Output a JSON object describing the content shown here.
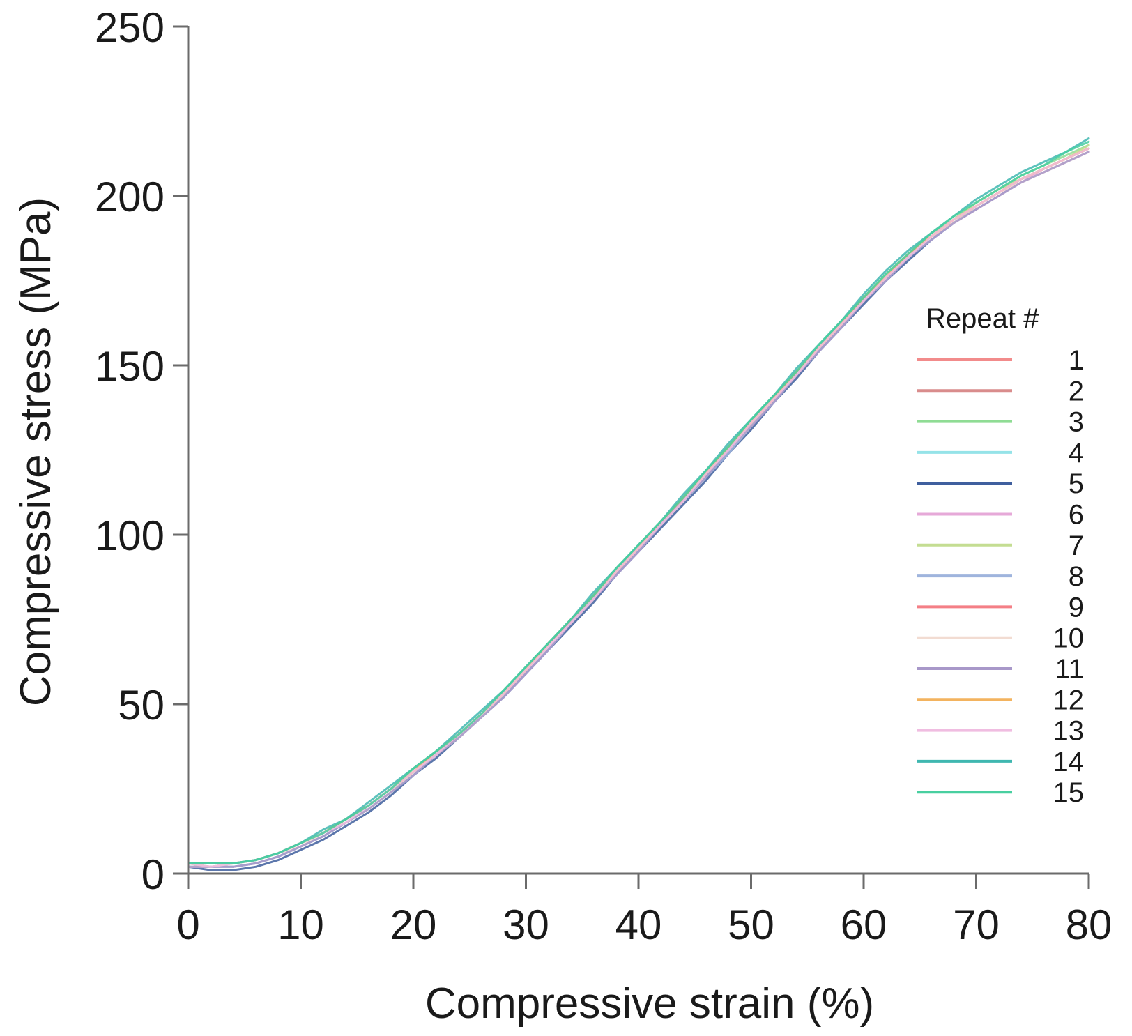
{
  "chart_data": {
    "type": "line",
    "xlabel": "Compressive strain (%)",
    "ylabel": "Compressive stress (MPa)",
    "xlim": [
      0,
      80
    ],
    "ylim": [
      0,
      250
    ],
    "x_ticks": [
      0,
      10,
      20,
      30,
      40,
      50,
      60,
      70,
      80
    ],
    "y_ticks": [
      0,
      50,
      100,
      150,
      200,
      250
    ],
    "grid": false,
    "legend": {
      "title": "Repeat #",
      "placement": "right"
    },
    "x": [
      0,
      2,
      4,
      6,
      8,
      10,
      12,
      14,
      16,
      18,
      20,
      22,
      24,
      26,
      28,
      30,
      32,
      34,
      36,
      38,
      40,
      42,
      44,
      46,
      48,
      50,
      52,
      54,
      56,
      58,
      60,
      62,
      64,
      66,
      68,
      70,
      72,
      74,
      76,
      78,
      80
    ],
    "series": [
      {
        "name": "1",
        "color": "#f28b8b",
        "values": [
          3,
          2,
          2,
          3,
          5,
          8,
          11,
          15,
          19,
          24,
          30,
          35,
          40,
          46,
          52,
          59,
          67,
          74,
          81,
          89,
          96,
          103,
          110,
          118,
          125,
          133,
          140,
          148,
          155,
          162,
          169,
          176,
          182,
          188,
          192,
          196,
          200,
          204,
          207,
          210,
          213
        ]
      },
      {
        "name": "2",
        "color": "#d98c8c",
        "values": [
          2,
          2,
          3,
          4,
          6,
          9,
          12,
          16,
          20,
          25,
          30,
          35,
          41,
          47,
          53,
          60,
          68,
          75,
          82,
          89,
          96,
          104,
          111,
          118,
          126,
          133,
          140,
          148,
          155,
          162,
          170,
          176,
          183,
          188,
          193,
          197,
          201,
          205,
          208,
          211,
          214
        ]
      },
      {
        "name": "3",
        "color": "#8fdc94",
        "values": [
          3,
          3,
          3,
          4,
          6,
          9,
          12,
          16,
          20,
          25,
          31,
          36,
          41,
          47,
          54,
          61,
          68,
          75,
          82,
          90,
          97,
          104,
          111,
          119,
          126,
          134,
          141,
          148,
          155,
          163,
          170,
          177,
          183,
          189,
          193,
          198,
          202,
          206,
          209,
          212,
          215
        ]
      },
      {
        "name": "4",
        "color": "#95e3e8",
        "values": [
          2,
          2,
          2,
          3,
          5,
          8,
          11,
          15,
          19,
          24,
          30,
          35,
          40,
          46,
          52,
          59,
          67,
          74,
          81,
          88,
          96,
          103,
          110,
          117,
          125,
          132,
          140,
          147,
          154,
          162,
          169,
          176,
          182,
          188,
          193,
          197,
          201,
          205,
          208,
          211,
          214
        ]
      },
      {
        "name": "5",
        "color": "#3f5f9e",
        "values": [
          2,
          1,
          1,
          2,
          4,
          7,
          10,
          14,
          18,
          23,
          29,
          34,
          40,
          46,
          52,
          59,
          66,
          73,
          80,
          88,
          95,
          102,
          109,
          116,
          124,
          131,
          139,
          146,
          154,
          161,
          168,
          175,
          181,
          187,
          192,
          197,
          201,
          205,
          208,
          211,
          214
        ]
      },
      {
        "name": "6",
        "color": "#e6a9d8",
        "values": [
          3,
          3,
          3,
          4,
          6,
          9,
          12,
          16,
          20,
          25,
          30,
          36,
          41,
          47,
          53,
          60,
          67,
          74,
          82,
          89,
          96,
          103,
          111,
          118,
          126,
          133,
          140,
          148,
          155,
          162,
          169,
          176,
          182,
          188,
          193,
          197,
          201,
          204,
          208,
          211,
          214
        ]
      },
      {
        "name": "7",
        "color": "#c4dd92",
        "values": [
          3,
          2,
          3,
          4,
          6,
          9,
          12,
          16,
          20,
          25,
          31,
          36,
          41,
          47,
          53,
          60,
          68,
          75,
          82,
          89,
          96,
          104,
          111,
          118,
          126,
          133,
          141,
          148,
          155,
          162,
          170,
          177,
          183,
          188,
          193,
          198,
          202,
          205,
          208,
          211,
          215
        ]
      },
      {
        "name": "8",
        "color": "#9fb4dd",
        "values": [
          2,
          2,
          2,
          3,
          5,
          8,
          11,
          15,
          19,
          24,
          29,
          35,
          40,
          46,
          52,
          59,
          66,
          74,
          81,
          88,
          95,
          103,
          110,
          117,
          124,
          132,
          139,
          147,
          154,
          161,
          169,
          175,
          182,
          187,
          192,
          196,
          200,
          204,
          207,
          210,
          213
        ]
      },
      {
        "name": "9",
        "color": "#f47f86",
        "values": [
          3,
          3,
          3,
          4,
          6,
          9,
          12,
          16,
          20,
          25,
          30,
          35,
          41,
          47,
          53,
          60,
          67,
          75,
          82,
          89,
          96,
          103,
          111,
          118,
          125,
          133,
          140,
          148,
          155,
          162,
          170,
          176,
          183,
          188,
          193,
          197,
          201,
          205,
          208,
          211,
          214
        ]
      },
      {
        "name": "10",
        "color": "#f2dcd2",
        "values": [
          2,
          2,
          3,
          4,
          6,
          8,
          12,
          15,
          19,
          24,
          30,
          35,
          40,
          46,
          53,
          60,
          67,
          74,
          81,
          89,
          96,
          103,
          110,
          118,
          125,
          132,
          140,
          147,
          155,
          162,
          169,
          176,
          182,
          188,
          192,
          197,
          201,
          204,
          207,
          210,
          213
        ]
      },
      {
        "name": "11",
        "color": "#a898c9",
        "values": [
          2,
          2,
          2,
          3,
          5,
          8,
          11,
          15,
          19,
          24,
          29,
          35,
          40,
          46,
          52,
          59,
          66,
          74,
          81,
          88,
          95,
          103,
          110,
          117,
          125,
          132,
          139,
          147,
          154,
          161,
          169,
          175,
          182,
          187,
          192,
          196,
          200,
          204,
          207,
          210,
          213
        ]
      },
      {
        "name": "12",
        "color": "#f3b35f",
        "values": [
          3,
          3,
          3,
          4,
          6,
          9,
          12,
          16,
          20,
          25,
          30,
          36,
          41,
          47,
          53,
          60,
          68,
          75,
          82,
          89,
          96,
          104,
          111,
          118,
          126,
          133,
          140,
          148,
          155,
          162,
          170,
          176,
          183,
          188,
          193,
          197,
          201,
          205,
          208,
          211,
          214
        ]
      },
      {
        "name": "13",
        "color": "#f0bde1",
        "values": [
          3,
          2,
          3,
          4,
          6,
          9,
          12,
          15,
          20,
          25,
          30,
          35,
          41,
          47,
          53,
          60,
          67,
          74,
          81,
          89,
          96,
          103,
          110,
          118,
          125,
          133,
          140,
          147,
          155,
          162,
          169,
          176,
          182,
          188,
          193,
          197,
          201,
          205,
          208,
          211,
          214
        ]
      },
      {
        "name": "14",
        "color": "#3fb7b0",
        "values": [
          3,
          3,
          3,
          4,
          6,
          9,
          13,
          16,
          21,
          26,
          31,
          36,
          42,
          48,
          54,
          61,
          68,
          75,
          83,
          90,
          97,
          104,
          112,
          119,
          127,
          134,
          141,
          149,
          156,
          163,
          171,
          178,
          184,
          189,
          194,
          199,
          203,
          207,
          210,
          213,
          217
        ]
      },
      {
        "name": "15",
        "color": "#48cfa0",
        "values": [
          3,
          3,
          3,
          4,
          6,
          9,
          12,
          16,
          20,
          25,
          31,
          36,
          41,
          47,
          54,
          61,
          68,
          75,
          82,
          90,
          97,
          104,
          111,
          119,
          126,
          134,
          141,
          148,
          156,
          163,
          170,
          177,
          183,
          189,
          194,
          198,
          202,
          206,
          209,
          213,
          216
        ]
      }
    ]
  }
}
